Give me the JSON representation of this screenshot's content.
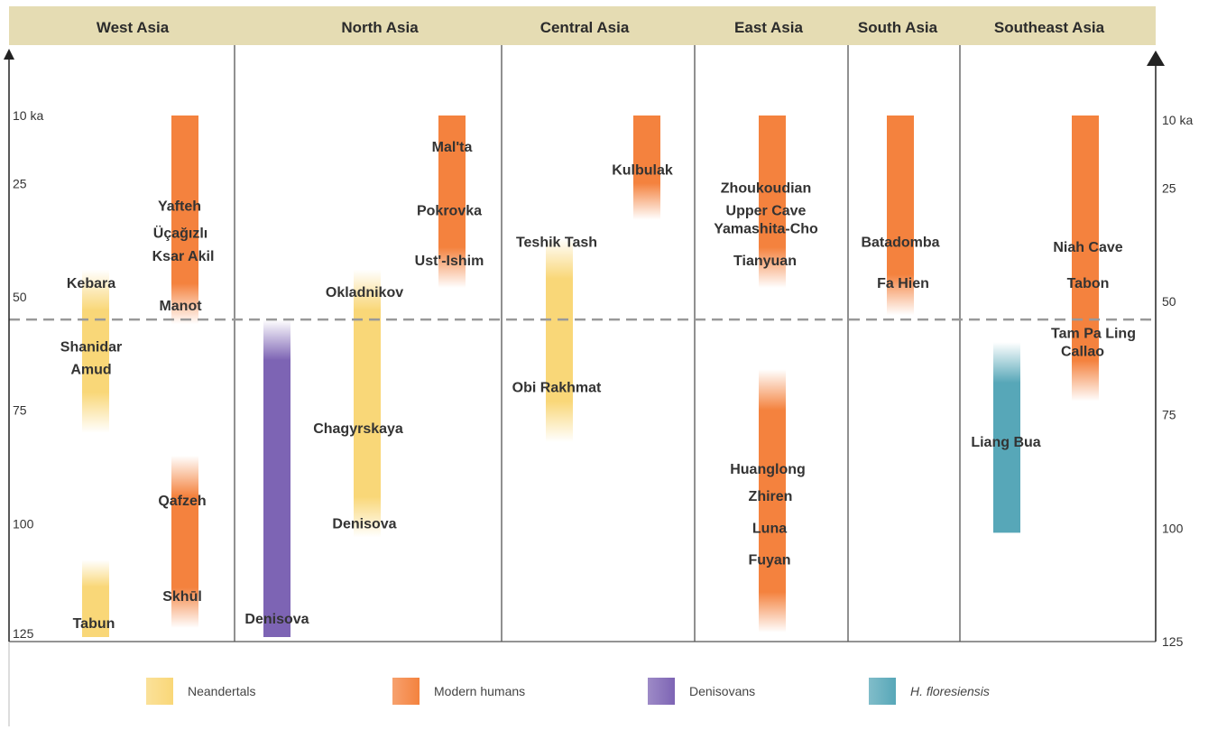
{
  "chart_data": {
    "type": "timeline",
    "unit_label": "ka",
    "y_ticks": [
      {
        "value": 10,
        "label": "10 ka"
      },
      {
        "value": 25,
        "label": "25"
      },
      {
        "value": 50,
        "label": "50"
      },
      {
        "value": 75,
        "label": "75"
      },
      {
        "value": 100,
        "label": "100"
      },
      {
        "value": 125,
        "label": "125"
      }
    ],
    "ylim": [
      0,
      125
    ],
    "dashed_line_value": 55,
    "regions": [
      "West Asia",
      "North Asia",
      "Central Asia",
      "East Asia",
      "South Asia",
      "Southeast Asia"
    ],
    "groups": [
      {
        "key": "neandertals",
        "name": "Neandertals",
        "color": "#f9d778"
      },
      {
        "key": "modern",
        "name": "Modern humans",
        "color": "#f4823e"
      },
      {
        "key": "denisovans",
        "name": "Denisovans",
        "color": "#7d64b4"
      },
      {
        "key": "floresiensis",
        "name": "H. floresiensis",
        "color": "#57a7b8"
      }
    ],
    "bars": [
      {
        "region": "West Asia",
        "group": "neandertals",
        "start": 44,
        "end": 80,
        "fade_top": true,
        "fade_bottom": true
      },
      {
        "region": "West Asia",
        "group": "neandertals",
        "start": 108,
        "end": 125,
        "fade_top": true,
        "fade_bottom": false
      },
      {
        "region": "West Asia",
        "group": "modern",
        "start": 10,
        "end": 56,
        "fade_top": false,
        "fade_bottom": true
      },
      {
        "region": "West Asia",
        "group": "modern",
        "start": 85,
        "end": 123,
        "fade_top": true,
        "fade_bottom": true
      },
      {
        "region": "North Asia",
        "group": "denisovans",
        "start": 55,
        "end": 125,
        "fade_top": true,
        "fade_bottom": false
      },
      {
        "region": "North Asia",
        "group": "neandertals",
        "start": 44,
        "end": 103,
        "fade_top": true,
        "fade_bottom": true
      },
      {
        "region": "North Asia",
        "group": "modern",
        "start": 10,
        "end": 48,
        "fade_top": false,
        "fade_bottom": true
      },
      {
        "region": "Central Asia",
        "group": "neandertals",
        "start": 37,
        "end": 82,
        "fade_top": true,
        "fade_bottom": true
      },
      {
        "region": "Central Asia",
        "group": "modern",
        "start": 10,
        "end": 33,
        "fade_top": false,
        "fade_bottom": true
      },
      {
        "region": "East Asia",
        "group": "modern",
        "start": 10,
        "end": 48,
        "fade_top": false,
        "fade_bottom": true
      },
      {
        "region": "East Asia",
        "group": "modern",
        "start": 66,
        "end": 124,
        "fade_top": true,
        "fade_bottom": true
      },
      {
        "region": "South Asia",
        "group": "modern",
        "start": 10,
        "end": 54,
        "fade_top": false,
        "fade_bottom": true
      },
      {
        "region": "Southeast Asia",
        "group": "floresiensis",
        "start": 60,
        "end": 102,
        "fade_top": true,
        "fade_bottom": false
      },
      {
        "region": "Southeast Asia",
        "group": "modern",
        "start": 10,
        "end": 73,
        "fade_top": false,
        "fade_bottom": true
      }
    ],
    "sites": [
      {
        "name": "Kebara",
        "region": "West Asia",
        "value": 47
      },
      {
        "name": "Shanidar",
        "region": "West Asia",
        "value": 61
      },
      {
        "name": "Amud",
        "region": "West Asia",
        "value": 66
      },
      {
        "name": "Tabun",
        "region": "West Asia",
        "value": 122
      },
      {
        "name": "Yafteh",
        "region": "West Asia",
        "value": 30
      },
      {
        "name": "Üçağızlı",
        "region": "West Asia",
        "value": 36
      },
      {
        "name": "Ksar Akil",
        "region": "West Asia",
        "value": 41
      },
      {
        "name": "Manot",
        "region": "West Asia",
        "value": 52
      },
      {
        "name": "Qafzeh",
        "region": "West Asia",
        "value": 95
      },
      {
        "name": "Skhūl",
        "region": "West Asia",
        "value": 116
      },
      {
        "name": "Mal'ta",
        "region": "North Asia",
        "value": 17
      },
      {
        "name": "Pokrovka",
        "region": "North Asia",
        "value": 31
      },
      {
        "name": "Ust'-Ishim",
        "region": "North Asia",
        "value": 42
      },
      {
        "name": "Okladnikov",
        "region": "North Asia",
        "value": 49
      },
      {
        "name": "Chagyrskaya",
        "region": "North Asia",
        "value": 79
      },
      {
        "name": "Denisova",
        "region": "North Asia",
        "value": 100
      },
      {
        "name": "Denisova",
        "region": "North Asia",
        "value": 121
      },
      {
        "name": "Kulbulak",
        "region": "Central Asia",
        "value": 22
      },
      {
        "name": "Teshik Tash",
        "region": "Central Asia",
        "value": 38
      },
      {
        "name": "Obi Rakhmat",
        "region": "Central Asia",
        "value": 70
      },
      {
        "name": "Zhoukoudian",
        "region": "East Asia",
        "value": 26
      },
      {
        "name": "Upper Cave",
        "region": "East Asia",
        "value": 31
      },
      {
        "name": "Yamashita-Cho",
        "region": "East Asia",
        "value": 35
      },
      {
        "name": "Tianyuan",
        "region": "East Asia",
        "value": 42
      },
      {
        "name": "Huanglong",
        "region": "East Asia",
        "value": 88
      },
      {
        "name": "Zhiren",
        "region": "East Asia",
        "value": 94
      },
      {
        "name": "Luna",
        "region": "East Asia",
        "value": 101
      },
      {
        "name": "Fuyan",
        "region": "East Asia",
        "value": 108
      },
      {
        "name": "Batadomba",
        "region": "South Asia",
        "value": 38
      },
      {
        "name": "Fa Hien",
        "region": "South Asia",
        "value": 47
      },
      {
        "name": "Niah Cave",
        "region": "Southeast Asia",
        "value": 39
      },
      {
        "name": "Tabon",
        "region": "Southeast Asia",
        "value": 47
      },
      {
        "name": "Tam Pa Ling",
        "region": "Southeast Asia",
        "value": 58
      },
      {
        "name": "Callao",
        "region": "Southeast Asia",
        "value": 62
      },
      {
        "name": "Liang Bua",
        "region": "Southeast Asia",
        "value": 82
      }
    ]
  }
}
